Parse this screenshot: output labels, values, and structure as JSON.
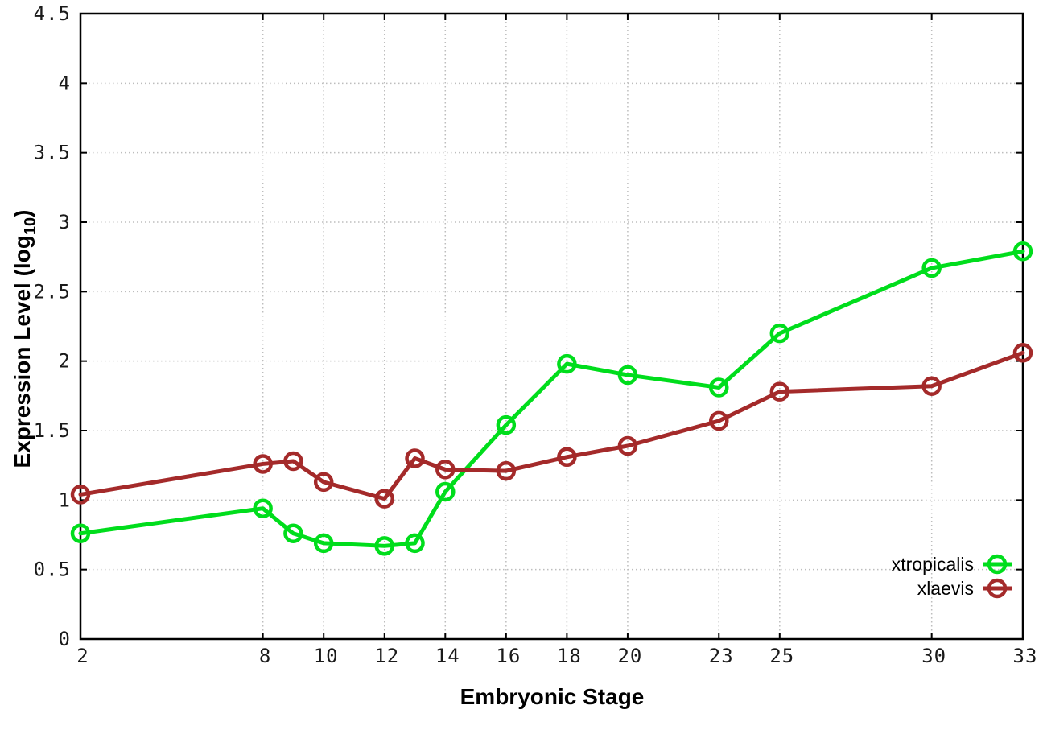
{
  "chart_data": {
    "type": "line",
    "title": "",
    "xlabel": "Embryonic Stage",
    "ylabel": {
      "prefix": "Expression Level (log",
      "sub": "10",
      "suffix": ")"
    },
    "xlim": [
      2,
      33
    ],
    "ylim": [
      0,
      4.5
    ],
    "grid": "dotted",
    "legend_position": "inside-bottom-right",
    "x": [
      2,
      8,
      9,
      10,
      12,
      13,
      14,
      16,
      18,
      20,
      23,
      25,
      30,
      33
    ],
    "xticks": [
      {
        "value": 2,
        "label": "2"
      },
      {
        "value": 8,
        "label": "8"
      },
      {
        "value": 10,
        "label": "10"
      },
      {
        "value": 12,
        "label": "12"
      },
      {
        "value": 14,
        "label": "14"
      },
      {
        "value": 16,
        "label": "16"
      },
      {
        "value": 18,
        "label": "18"
      },
      {
        "value": 20,
        "label": "20"
      },
      {
        "value": 23,
        "label": "23"
      },
      {
        "value": 25,
        "label": "25"
      },
      {
        "value": 30,
        "label": "30"
      },
      {
        "value": 33,
        "label": "33"
      }
    ],
    "yticks": [
      {
        "value": 0,
        "label": "0"
      },
      {
        "value": 0.5,
        "label": "0.5"
      },
      {
        "value": 1,
        "label": "1"
      },
      {
        "value": 1.5,
        "label": "1.5"
      },
      {
        "value": 2,
        "label": "2"
      },
      {
        "value": 2.5,
        "label": "2.5"
      },
      {
        "value": 3,
        "label": "3"
      },
      {
        "value": 3.5,
        "label": "3.5"
      },
      {
        "value": 4,
        "label": "4"
      },
      {
        "value": 4.5,
        "label": "4.5"
      }
    ],
    "series": [
      {
        "name": "xtropicalis",
        "color": "#00dd1c",
        "marker": "open-circle",
        "values": [
          0.76,
          0.94,
          0.76,
          0.69,
          0.67,
          0.69,
          1.06,
          1.54,
          1.98,
          1.9,
          1.81,
          2.2,
          2.67,
          2.79
        ]
      },
      {
        "name": "xlaevis",
        "color": "#a42a2a",
        "marker": "open-circle",
        "values": [
          1.04,
          1.26,
          1.28,
          1.13,
          1.01,
          1.3,
          1.22,
          1.21,
          1.31,
          1.39,
          1.57,
          1.78,
          1.82,
          2.06
        ]
      }
    ],
    "colors": {
      "grid": "#bdbdbd",
      "axis": "#000000",
      "tick_text": "#1a1a1a"
    }
  }
}
